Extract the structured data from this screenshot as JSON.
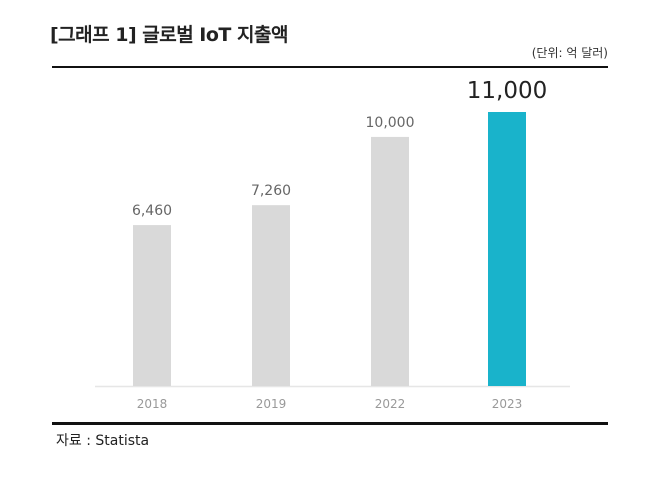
{
  "chart_data": {
    "type": "bar",
    "title": "[그래프 1] 글로벌 IoT 지출액",
    "unit": "(단위: 억 달러)",
    "categories": [
      "2018",
      "2019",
      "2022",
      "2023"
    ],
    "values": [
      6460,
      7260,
      10000,
      11000
    ],
    "value_labels": [
      "6,460",
      "7,260",
      "10,000",
      "11,000"
    ],
    "ylim": [
      0,
      11000
    ],
    "grid": false,
    "colors": [
      "#d9d9d9",
      "#d9d9d9",
      "#d9d9d9",
      "#19b3cb"
    ],
    "highlight_index": 3
  },
  "source": "자료 : Statista"
}
